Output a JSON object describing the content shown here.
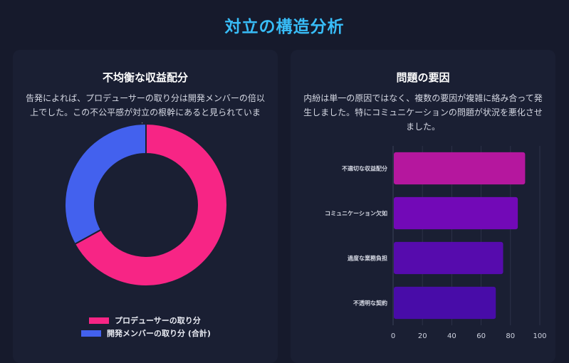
{
  "page": {
    "title": "対立の構造分析"
  },
  "left_card": {
    "title": "不均衡な収益配分",
    "description": "告発によれば、プロデューサーの取り分は開発メンバーの倍以上でした。この不公平感が対立の根幹にあると見られています。"
  },
  "right_card": {
    "title": "問題の要因",
    "description": "内紛は単一の原因ではなく、複数の要因が複雑に絡み合って発生しました。特にコミュニケーションの問題が状況を悪化させました。"
  },
  "chart_data": [
    {
      "type": "pie",
      "variant": "doughnut",
      "title": "",
      "labels": [
        "プロデューサーの取り分",
        "開発メンバーの取り分 (合計)"
      ],
      "values": [
        67,
        33
      ],
      "colors": [
        "#f72585",
        "#4361ee"
      ],
      "legend": "bottom"
    },
    {
      "type": "bar",
      "orientation": "horizontal",
      "title": "",
      "categories": [
        "不適切な収益配分",
        "コミュニケーション欠如",
        "過度な業務負担",
        "不透明な契約"
      ],
      "values": [
        90,
        85,
        75,
        70
      ],
      "colors": [
        "#b5179e",
        "#7209b7",
        "#560bad",
        "#480ca8"
      ],
      "xlim": [
        0,
        100
      ],
      "xticks": [
        "0",
        "20",
        "40",
        "60",
        "80",
        "100"
      ],
      "grid": true,
      "legend": "none"
    }
  ]
}
